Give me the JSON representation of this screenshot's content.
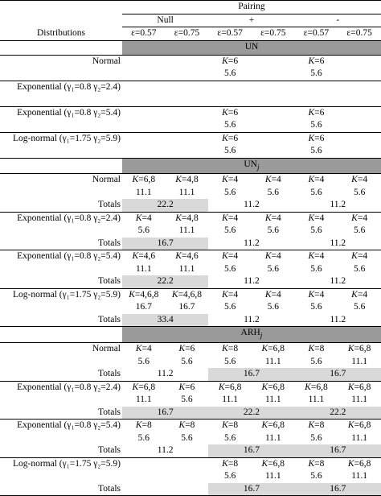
{
  "header": {
    "group_title": "Pairing",
    "groups": [
      "Null",
      "+",
      "-"
    ],
    "label_header": "Distributions",
    "eps": [
      "ε=0.57",
      "ε=0.75",
      "ε=0.57",
      "ε=0.75",
      "ε=0.57",
      "ε=0.75"
    ]
  },
  "sections": [
    {
      "title": "UN",
      "rows": [
        {
          "label": "Normal",
          "k": [
            null,
            null,
            "K=6",
            null,
            "K=6",
            null
          ],
          "v": [
            null,
            null,
            "5.6",
            null,
            "5.6",
            null
          ]
        },
        {
          "label": "Exponential (γ₁=0.8 γ₂=2.4)",
          "k": [
            null,
            null,
            null,
            null,
            null,
            null
          ],
          "v": [
            null,
            null,
            null,
            null,
            null,
            null
          ]
        },
        {
          "label": "Exponential (γ₁=0.8 γ₂=5.4)",
          "k": [
            null,
            null,
            "K=6",
            null,
            "K=6",
            null
          ],
          "v": [
            null,
            null,
            "5.6",
            null,
            "5.6",
            null
          ]
        },
        {
          "label": "Log-normal (γ₁=1.75 γ₂=5.9)",
          "k": [
            null,
            null,
            "K=6",
            null,
            "K=6",
            null
          ],
          "v": [
            null,
            null,
            "5.6",
            null,
            "5.6",
            null
          ]
        }
      ]
    },
    {
      "title": "UN",
      "subscript": "j",
      "rows": [
        {
          "label": "Normal",
          "k": [
            "K=6,8",
            "K=4,8",
            "K=4",
            "K=4",
            "K=4",
            "K=4"
          ],
          "v": [
            "11.1",
            "11.1",
            "5.6",
            "5.6",
            "5.6",
            "5.6"
          ],
          "totals_label": "Totals",
          "totals": [
            {
              "text": "22.2",
              "shaded": true
            },
            {
              "text": "11.2",
              "shaded": false
            },
            {
              "text": "11.2",
              "shaded": false
            }
          ]
        },
        {
          "label": "Exponential (γ₁=0.8 γ₂=2.4)",
          "k": [
            "K=4",
            "K=4,8",
            "K=4",
            "K=4",
            "K=4",
            "K=4"
          ],
          "v": [
            "5.6",
            "11.1",
            "5.6",
            "5.6",
            "5.6",
            "5.6"
          ],
          "totals_label": "Totals",
          "totals": [
            {
              "text": "16.7",
              "shaded": true
            },
            {
              "text": "11.2",
              "shaded": false
            },
            {
              "text": "11.2",
              "shaded": false
            }
          ]
        },
        {
          "label": "Exponential (γ₁=0.8 γ₂=5.4)",
          "k": [
            "K=4,6",
            "K=4,6",
            "K=4",
            "K=4",
            "K=4",
            "K=4"
          ],
          "v": [
            "11.1",
            "11.1",
            "5.6",
            "5.6",
            "5.6",
            "5.6"
          ],
          "totals_label": "Totals",
          "totals": [
            {
              "text": "22.2",
              "shaded": true
            },
            {
              "text": "11.2",
              "shaded": false
            },
            {
              "text": "11.2",
              "shaded": false
            }
          ]
        },
        {
          "label": "Log-normal (γ₁=1.75 γ₂=5.9)",
          "k": [
            "K=4,6,8",
            "K=4,6,8",
            "K=4",
            "K=4",
            "K=4",
            "K=4"
          ],
          "v": [
            "16.7",
            "16.7",
            "5.6",
            "5.6",
            "5.6",
            "5.6"
          ],
          "totals_label": "Totals",
          "totals": [
            {
              "text": "33.4",
              "shaded": true
            },
            {
              "text": "11.2",
              "shaded": false
            },
            {
              "text": "11.2",
              "shaded": false
            }
          ]
        }
      ]
    },
    {
      "title": "ARH",
      "subscript": "j",
      "rows": [
        {
          "label": "Normal",
          "k": [
            "K=4",
            "K=6",
            "K=8",
            "K=6,8",
            "K=8",
            "K=6,8"
          ],
          "v": [
            "5.6",
            "5.6",
            "5.6",
            "11.1",
            "5.6",
            "11.1"
          ],
          "totals_label": "Totals",
          "totals": [
            {
              "text": "11.2",
              "shaded": false
            },
            {
              "text": "16.7",
              "shaded": true
            },
            {
              "text": "16.7",
              "shaded": true
            }
          ]
        },
        {
          "label": "Exponential (γ₁=0.8 γ₂=2.4)",
          "k": [
            "K=6,8",
            "K=6",
            "K=6,8",
            "K=6,8",
            "K=6,8",
            "K=6,8"
          ],
          "v": [
            "11.1",
            "5.6",
            "11.1",
            "11.1",
            "11.1",
            "11.1"
          ],
          "totals_label": "Totals",
          "totals": [
            {
              "text": "16.7",
              "shaded": true
            },
            {
              "text": "22.2",
              "shaded": true
            },
            {
              "text": "22.2",
              "shaded": true
            }
          ]
        },
        {
          "label": "Exponential (γ₁=0.8 γ₂=5.4)",
          "k": [
            "K=8",
            "K=8",
            "K=8",
            "K=6,8",
            "K=8",
            "K=6,8"
          ],
          "v": [
            "5.6",
            "5.6",
            "5.6",
            "11.1",
            "5.6",
            "11.1"
          ],
          "totals_label": "Totals",
          "totals": [
            {
              "text": "11.2",
              "shaded": false
            },
            {
              "text": "16.7",
              "shaded": true
            },
            {
              "text": "16.7",
              "shaded": true
            }
          ]
        },
        {
          "label": "Log-normal (γ₁=1.75 γ₂=5.9)",
          "k": [
            null,
            null,
            "K=8",
            "K=6,8",
            "K=8",
            "K=6,8"
          ],
          "v": [
            null,
            null,
            "5.6",
            "11.1",
            "5.6",
            "11.1"
          ],
          "totals_label": "Totals",
          "totals": [
            null,
            {
              "text": "16.7",
              "shaded": true
            },
            {
              "text": "16.7",
              "shaded": true
            }
          ]
        }
      ]
    }
  ]
}
